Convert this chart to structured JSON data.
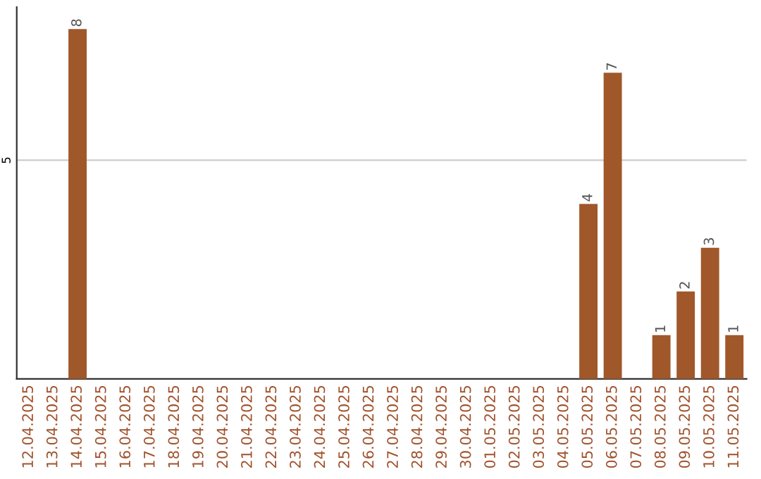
{
  "chart_data": {
    "type": "bar",
    "categories": [
      "12.04.2025",
      "13.04.2025",
      "14.04.2025",
      "15.04.2025",
      "16.04.2025",
      "17.04.2025",
      "18.04.2025",
      "19.04.2025",
      "20.04.2025",
      "21.04.2025",
      "22.04.2025",
      "23.04.2025",
      "24.04.2025",
      "25.04.2025",
      "26.04.2025",
      "27.04.2025",
      "28.04.2025",
      "29.04.2025",
      "30.04.2025",
      "01.05.2025",
      "02.05.2025",
      "03.05.2025",
      "04.05.2025",
      "05.05.2025",
      "06.05.2025",
      "07.05.2025",
      "08.05.2025",
      "09.05.2025",
      "10.05.2025",
      "11.05.2025"
    ],
    "values": [
      0,
      0,
      8,
      0,
      0,
      0,
      0,
      0,
      0,
      0,
      0,
      0,
      0,
      0,
      0,
      0,
      0,
      0,
      0,
      0,
      0,
      0,
      0,
      4,
      7,
      0,
      1,
      2,
      3,
      1
    ],
    "value_labels": [
      null,
      null,
      "8",
      null,
      null,
      null,
      null,
      null,
      null,
      null,
      null,
      null,
      null,
      null,
      null,
      null,
      null,
      null,
      null,
      null,
      null,
      null,
      null,
      "4",
      "7",
      null,
      "1",
      "2",
      "3",
      "1"
    ],
    "color": "#a0572a",
    "ylim": [
      0,
      8.5
    ],
    "yticks": [
      5
    ],
    "grid": "y"
  }
}
